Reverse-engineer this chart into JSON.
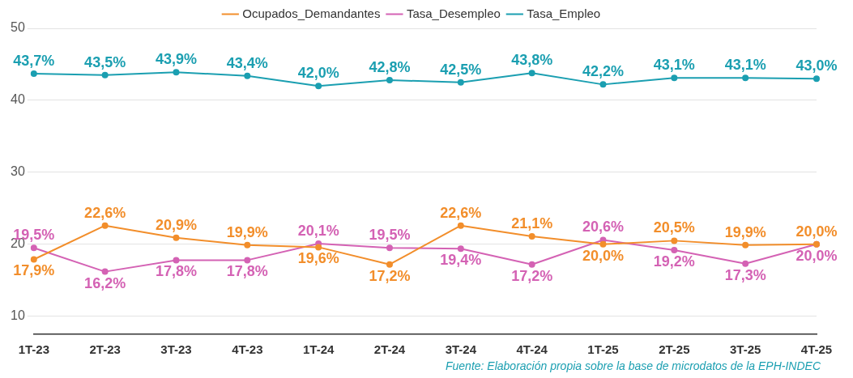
{
  "chart_data": {
    "type": "line",
    "categories": [
      "1T-23",
      "2T-23",
      "3T-23",
      "4T-23",
      "1T-24",
      "2T-24",
      "3T-24",
      "4T-24",
      "1T-25",
      "2T-25",
      "3T-25",
      "4T-25"
    ],
    "series": [
      {
        "name": "Ocupados_Demandantes",
        "color": "#f28e2b",
        "values": [
          17.9,
          22.6,
          20.9,
          19.9,
          19.6,
          17.2,
          22.6,
          21.1,
          20.0,
          20.5,
          19.9,
          20.0
        ],
        "value_labels": [
          "17,9%",
          "22,6%",
          "20,9%",
          "19,9%",
          "19,6%",
          "17,2%",
          "22,6%",
          "21,1%",
          "20,0%",
          "20,5%",
          "19,9%",
          "20,0%"
        ]
      },
      {
        "name": "Tasa_Desempleo",
        "color": "#d462b4",
        "values": [
          19.5,
          16.2,
          17.8,
          17.8,
          20.1,
          19.5,
          19.4,
          17.2,
          20.6,
          19.2,
          17.3,
          20.0
        ],
        "value_labels": [
          "19,5%",
          "16,2%",
          "17,8%",
          "17,8%",
          "20,1%",
          "19,5%",
          "19,4%",
          "17,2%",
          "20,6%",
          "19,2%",
          "17,3%",
          "20,0%"
        ]
      },
      {
        "name": "Tasa_Empleo",
        "color": "#1b9fb1",
        "values": [
          43.7,
          43.5,
          43.9,
          43.4,
          42.0,
          42.8,
          42.5,
          43.8,
          42.2,
          43.1,
          43.1,
          43.0
        ],
        "value_labels": [
          "43,7%",
          "43,5%",
          "43,9%",
          "43,4%",
          "42,0%",
          "42,8%",
          "42,5%",
          "43,8%",
          "42,2%",
          "43,1%",
          "43,1%",
          "43,0%"
        ]
      }
    ],
    "ylim": [
      7.5,
      50
    ],
    "yticks": [
      10,
      20,
      30,
      40,
      50
    ],
    "grid": "y",
    "legend": "top",
    "marker": "circle",
    "line_style": "solid",
    "annotations": [
      "Fuente: Elaboración propia sobre la base de microdatos de la EPH-INDEC"
    ]
  }
}
